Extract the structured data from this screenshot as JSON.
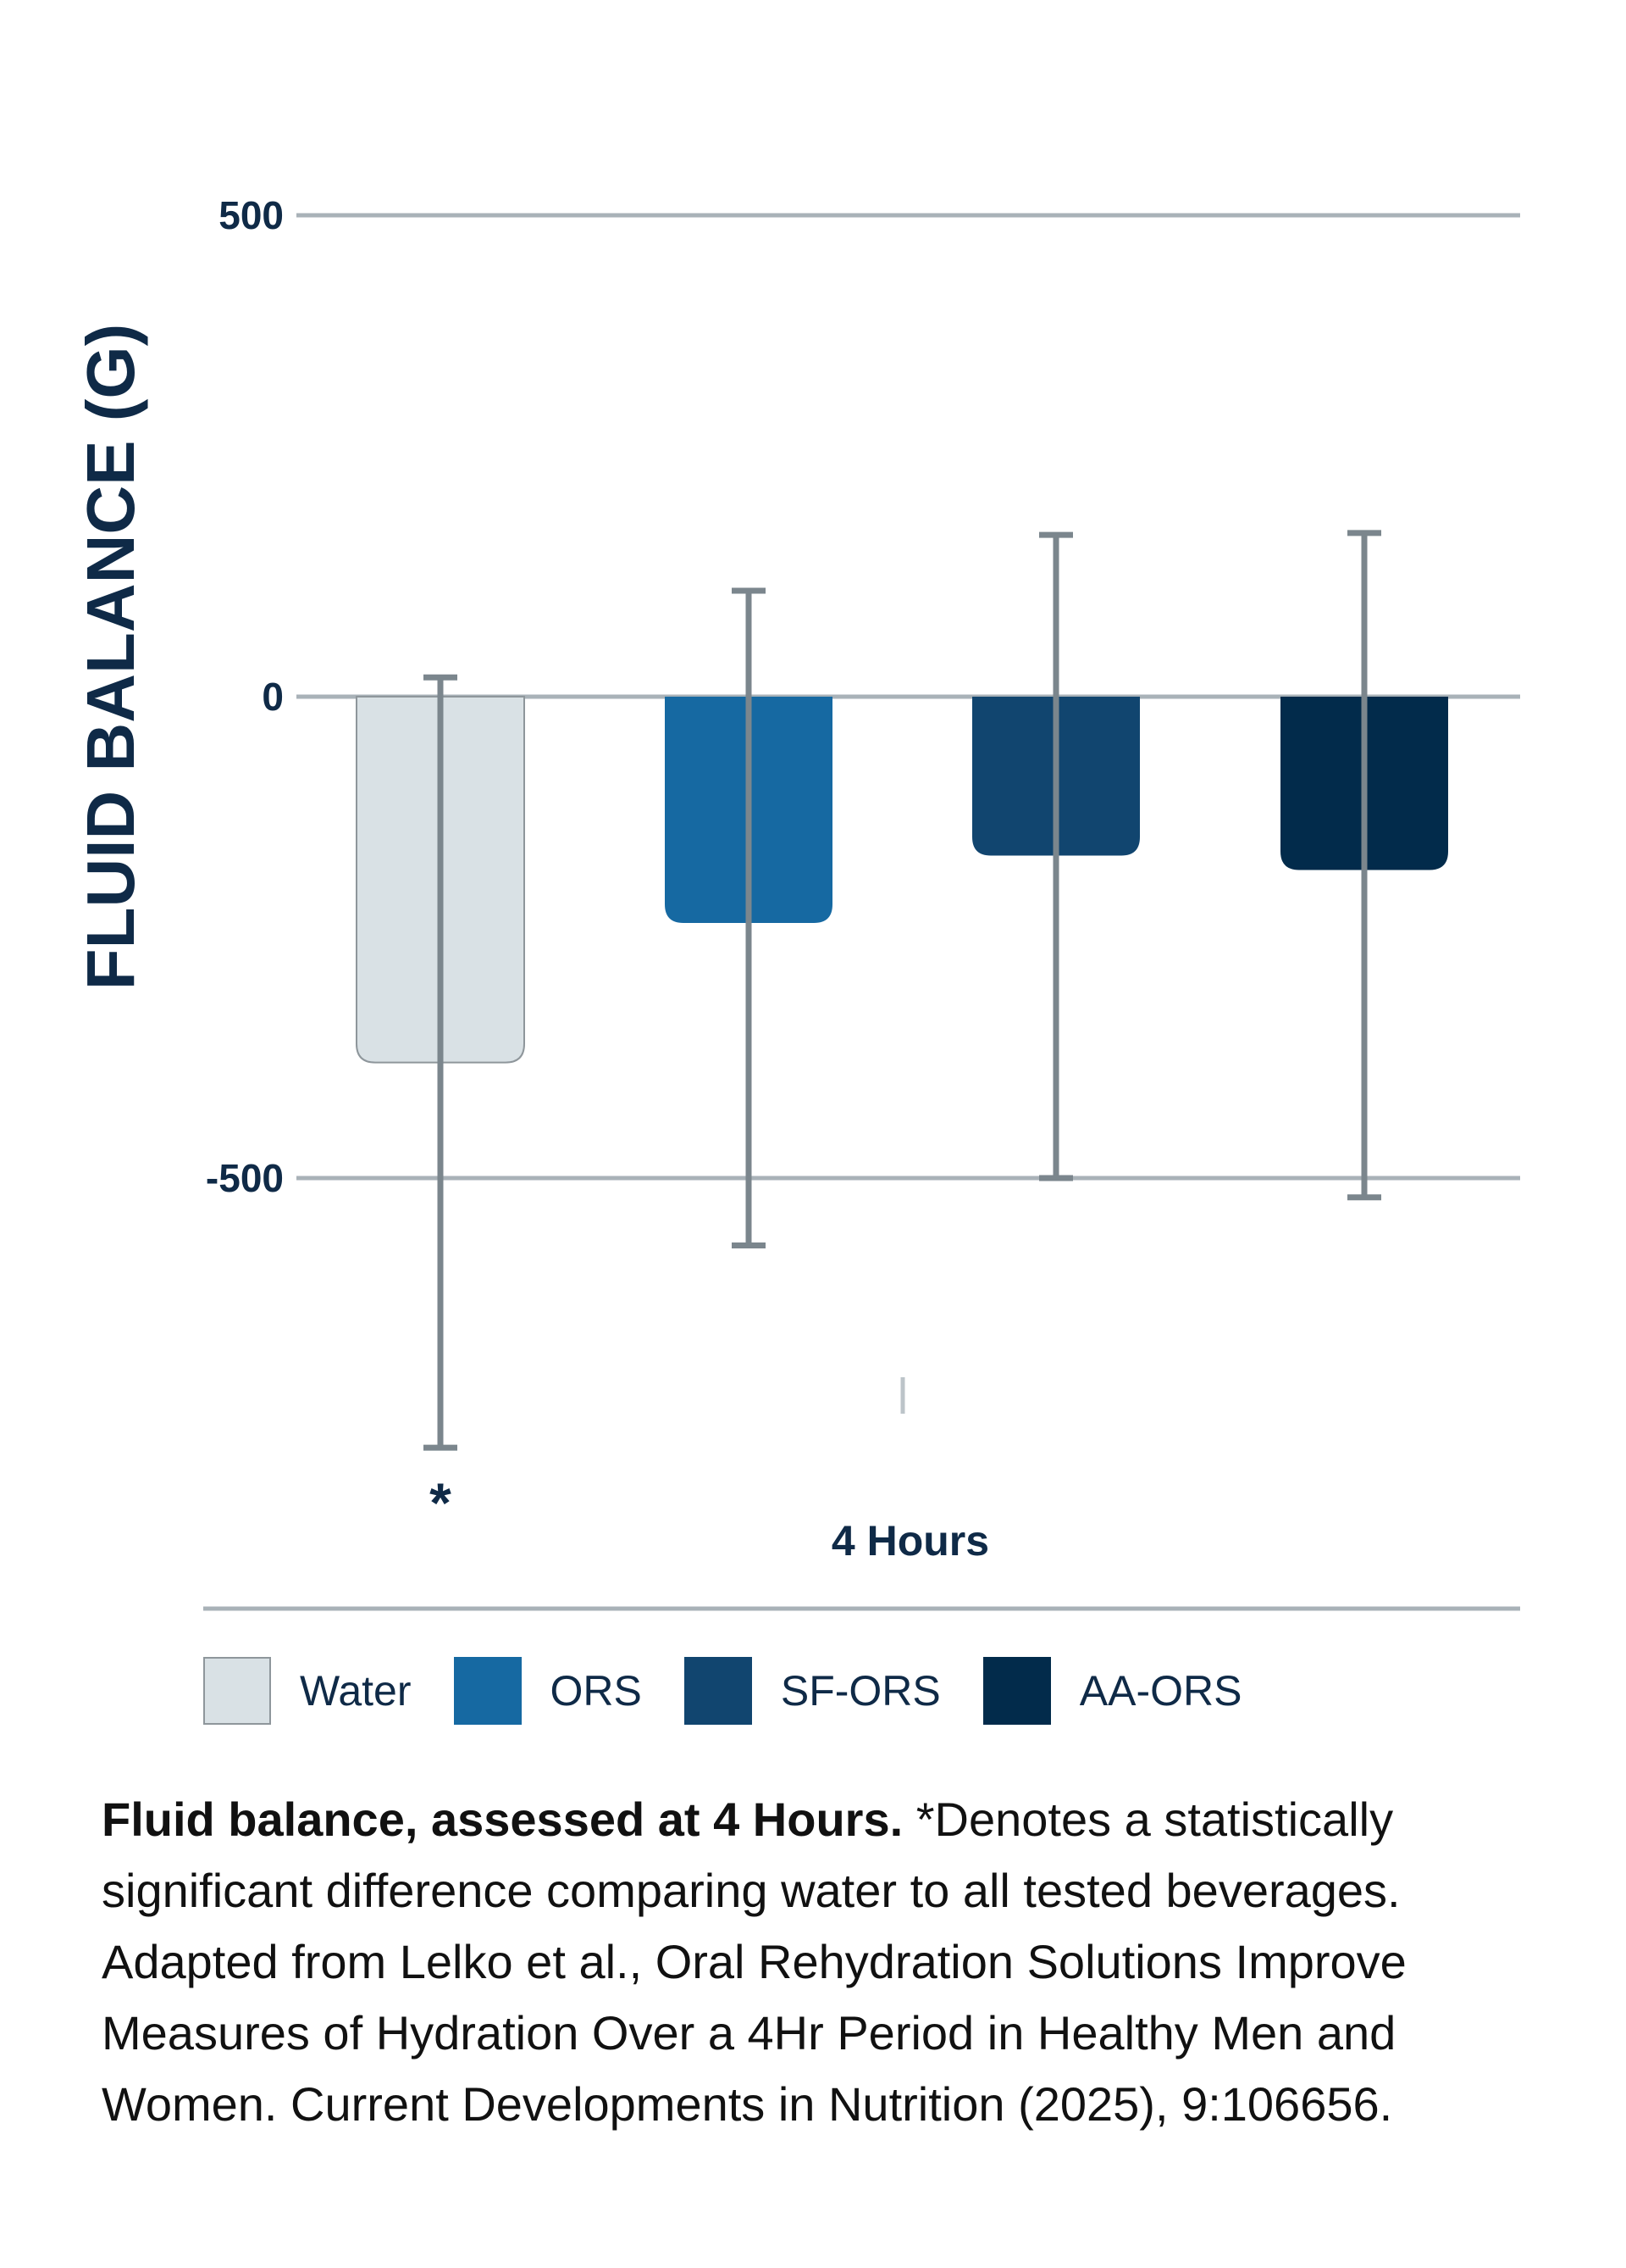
{
  "chart_data": {
    "type": "bar",
    "title": "",
    "xlabel": "4 Hours",
    "ylabel": "FLUID BALANCE (G)",
    "ylim": [
      -750,
      500
    ],
    "yticks": [
      500,
      0,
      -500
    ],
    "ytick_labels": [
      "500",
      "0",
      "-500"
    ],
    "grid": true,
    "legend_position": "bottom-left",
    "categories": [
      "4 Hours"
    ],
    "series": [
      {
        "name": "Water",
        "values": [
          -380
        ],
        "error_low": -780,
        "error_high": 20,
        "color": "#d9e1e5",
        "significant": true
      },
      {
        "name": "ORS",
        "values": [
          -235
        ],
        "error_low": -570,
        "error_high": 110,
        "color": "#1669a2"
      },
      {
        "name": "SF-ORS",
        "values": [
          -165
        ],
        "error_low": -500,
        "error_high": 168,
        "color": "#11456f"
      },
      {
        "name": "AA-ORS",
        "values": [
          -180
        ],
        "error_low": -520,
        "error_high": 170,
        "color": "#022b4b"
      }
    ],
    "annotations": [
      {
        "text": "*",
        "series": "Water"
      }
    ]
  },
  "caption": {
    "bold": "Fluid balance, assessed at 4 Hours.",
    "text": " *Denotes a statistically significant difference comparing water to all tested beverages. Adapted from Lelko et al., Oral Rehydration Solutions Improve Measures of Hydration Over a 4Hr Period in Healthy Men and Women. Current Developments in Nutrition (2025), 9:106656."
  },
  "colors": {
    "gridline": "#a9b2b8",
    "errorbar": "#7b868d",
    "text": "#0f2a47"
  }
}
